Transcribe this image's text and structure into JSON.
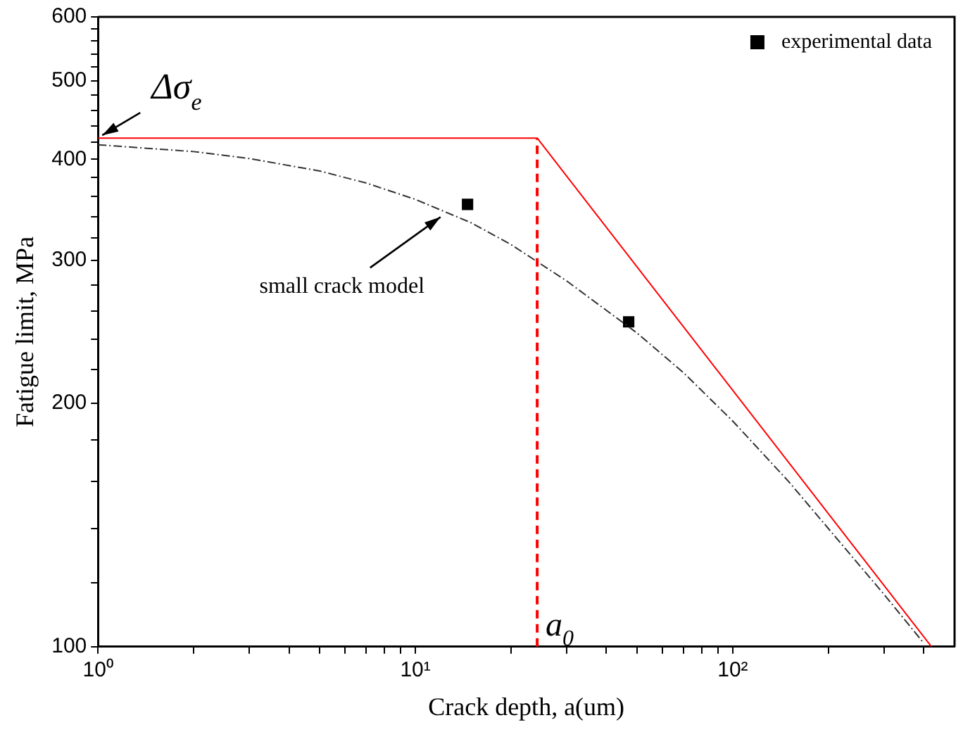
{
  "chart_data": {
    "type": "line",
    "xlabel": "Crack depth, a(um)",
    "ylabel": "Fatigue limit, MPa",
    "log": "xy",
    "grid": false,
    "legend": "top right",
    "xlim": [
      1,
      500
    ],
    "ylim": [
      100,
      600
    ],
    "xticks": [
      {
        "value": 1,
        "label": "10⁰"
      },
      {
        "value": 2,
        "label": null
      },
      {
        "value": 3,
        "label": null
      },
      {
        "value": 4,
        "label": null
      },
      {
        "value": 5,
        "label": null
      },
      {
        "value": 6,
        "label": null
      },
      {
        "value": 7,
        "label": null
      },
      {
        "value": 8,
        "label": null
      },
      {
        "value": 9,
        "label": null
      },
      {
        "value": 10,
        "label": "10¹"
      },
      {
        "value": 20,
        "label": null
      },
      {
        "value": 30,
        "label": null
      },
      {
        "value": 40,
        "label": null
      },
      {
        "value": 50,
        "label": null
      },
      {
        "value": 60,
        "label": null
      },
      {
        "value": 70,
        "label": null
      },
      {
        "value": 80,
        "label": null
      },
      {
        "value": 90,
        "label": null
      },
      {
        "value": 100,
        "label": "10²"
      },
      {
        "value": 200,
        "label": null
      },
      {
        "value": 300,
        "label": null
      },
      {
        "value": 400,
        "label": null
      }
    ],
    "yticks": [
      100,
      {
        "value": 120,
        "label": null
      },
      {
        "value": 140,
        "label": null
      },
      {
        "value": 160,
        "label": null
      },
      {
        "value": 180,
        "label": null
      },
      200,
      {
        "value": 220,
        "label": null
      },
      {
        "value": 240,
        "label": null
      },
      {
        "value": 260,
        "label": null
      },
      {
        "value": 280,
        "label": null
      },
      300,
      {
        "value": 320,
        "label": null
      },
      {
        "value": 340,
        "label": null
      },
      {
        "value": 360,
        "label": null
      },
      {
        "value": 380,
        "label": null
      },
      400,
      {
        "value": 420,
        "label": null
      },
      {
        "value": 440,
        "label": null
      },
      {
        "value": 460,
        "label": null
      },
      {
        "value": 480,
        "label": null
      },
      500,
      {
        "value": 520,
        "label": null
      },
      {
        "value": 540,
        "label": null
      },
      {
        "value": 560,
        "label": null
      },
      {
        "value": 580,
        "label": null
      },
      600
    ],
    "series": [
      {
        "type": "line",
        "color": "#ff0000",
        "line_style": "solid",
        "marker": "none",
        "x": [
          1,
          24.2,
          423
        ],
        "values": [
          425,
          425,
          100
        ]
      },
      {
        "type": "line",
        "color": "#ff0000",
        "line_style": "dashed",
        "marker": "none",
        "x": [
          24.2,
          24.2
        ],
        "values": [
          100,
          425
        ]
      },
      {
        "type": "line",
        "color": "#333333",
        "line_style": "dotted",
        "marker": "none",
        "x": [
          1,
          2,
          3,
          5,
          7,
          10,
          15,
          20,
          30,
          50,
          70,
          100,
          150,
          200,
          300,
          400
        ],
        "values": [
          417,
          409,
          401,
          387,
          374,
          357,
          334,
          314,
          283,
          244,
          218,
          190,
          160,
          140,
          116,
          101
        ]
      },
      {
        "type": "scatter",
        "name": "experimental data",
        "color": "#000000",
        "marker": "square",
        "x": [
          14.6,
          47
        ],
        "values": [
          352,
          252
        ]
      }
    ],
    "annotations": [
      {
        "text": "Δσ$_{e}$",
        "x": 1,
        "y": 425
      },
      {
        "text": "small crack model",
        "x": 12,
        "y": 345
      },
      {
        "text": "a$_{0}$",
        "x": 24.2,
        "y": 100
      }
    ]
  }
}
